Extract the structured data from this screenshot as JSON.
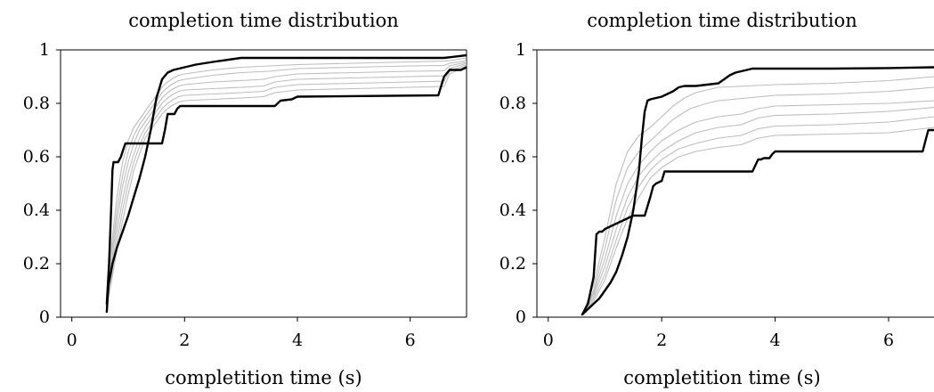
{
  "chart_data": [
    {
      "type": "line",
      "title": "completion time distribution",
      "xlabel": "completition time (s)",
      "ylabel": "",
      "xlim": [
        -0.2,
        7.0
      ],
      "ylim": [
        0,
        1
      ],
      "xticks": [
        0,
        2,
        4,
        6
      ],
      "xtick_labels": [
        "0",
        "2",
        "4",
        "6"
      ],
      "yticks": [
        0,
        0.2,
        0.4,
        0.6,
        0.8,
        1
      ],
      "ytick_labels": [
        "0",
        "0.2",
        "0.4",
        "0.6",
        "0.8",
        "1"
      ],
      "grid": false,
      "series": [
        {
          "style": "bold",
          "x": [
            0.62,
            0.65,
            0.72,
            0.8,
            0.9,
            1.0,
            1.1,
            1.2,
            1.3,
            1.4,
            1.5,
            1.6,
            1.7,
            1.8,
            2.0,
            2.2,
            2.5,
            3.0,
            4.0,
            5.0,
            6.0,
            6.6,
            7.0
          ],
          "y": [
            0.02,
            0.12,
            0.2,
            0.26,
            0.32,
            0.38,
            0.45,
            0.52,
            0.6,
            0.7,
            0.82,
            0.89,
            0.915,
            0.925,
            0.935,
            0.945,
            0.955,
            0.97,
            0.97,
            0.97,
            0.97,
            0.97,
            0.98
          ]
        },
        {
          "style": "bold",
          "x": [
            0.62,
            0.66,
            0.7,
            0.72,
            0.74,
            0.82,
            0.87,
            0.9,
            0.95,
            1.0,
            1.05,
            1.6,
            1.65,
            1.7,
            1.75,
            1.82,
            1.87,
            1.92,
            1.95,
            3.6,
            3.7,
            3.9,
            4.0,
            6.5,
            6.6,
            6.7,
            6.9,
            7.0
          ],
          "y": [
            0.05,
            0.2,
            0.42,
            0.55,
            0.58,
            0.58,
            0.6,
            0.62,
            0.65,
            0.65,
            0.65,
            0.65,
            0.7,
            0.76,
            0.76,
            0.76,
            0.78,
            0.79,
            0.79,
            0.79,
            0.81,
            0.815,
            0.825,
            0.83,
            0.9,
            0.925,
            0.925,
            0.935
          ]
        },
        {
          "style": "gray",
          "x": [
            0.62,
            0.7,
            0.8,
            0.9,
            1.0,
            1.1,
            1.2,
            1.3,
            1.4,
            1.5,
            1.6,
            1.7,
            1.8,
            1.9,
            2.0,
            2.5,
            3.0,
            4.0,
            5.0,
            6.0,
            6.6,
            6.7,
            7.0
          ],
          "y": [
            0.04,
            0.26,
            0.45,
            0.58,
            0.66,
            0.71,
            0.74,
            0.77,
            0.8,
            0.83,
            0.86,
            0.88,
            0.895,
            0.905,
            0.91,
            0.925,
            0.935,
            0.945,
            0.95,
            0.955,
            0.958,
            0.96,
            0.97
          ]
        },
        {
          "style": "gray",
          "x": [
            0.62,
            0.7,
            0.8,
            0.9,
            1.0,
            1.1,
            1.2,
            1.3,
            1.4,
            1.5,
            1.6,
            1.7,
            1.8,
            1.9,
            2.0,
            2.5,
            3.0,
            3.5,
            4.0,
            5.0,
            6.0,
            6.6,
            6.7,
            7.0
          ],
          "y": [
            0.04,
            0.23,
            0.4,
            0.53,
            0.62,
            0.68,
            0.72,
            0.75,
            0.78,
            0.81,
            0.84,
            0.86,
            0.875,
            0.885,
            0.89,
            0.905,
            0.915,
            0.92,
            0.93,
            0.935,
            0.94,
            0.942,
            0.95,
            0.96
          ]
        },
        {
          "style": "gray",
          "x": [
            0.62,
            0.7,
            0.8,
            0.9,
            1.0,
            1.1,
            1.2,
            1.3,
            1.4,
            1.5,
            1.6,
            1.7,
            1.8,
            1.9,
            2.0,
            2.5,
            3.0,
            3.4,
            3.6,
            4.0,
            5.0,
            6.0,
            6.6,
            6.7,
            7.0
          ],
          "y": [
            0.04,
            0.2,
            0.36,
            0.49,
            0.58,
            0.65,
            0.7,
            0.73,
            0.76,
            0.79,
            0.82,
            0.84,
            0.855,
            0.865,
            0.87,
            0.88,
            0.885,
            0.89,
            0.9,
            0.91,
            0.915,
            0.92,
            0.922,
            0.94,
            0.955
          ]
        },
        {
          "style": "gray",
          "x": [
            0.62,
            0.7,
            0.8,
            0.9,
            1.0,
            1.1,
            1.2,
            1.3,
            1.4,
            1.5,
            1.6,
            1.7,
            1.8,
            1.9,
            2.0,
            2.5,
            3.0,
            3.4,
            3.6,
            4.0,
            5.0,
            6.0,
            6.6,
            6.7,
            7.0
          ],
          "y": [
            0.04,
            0.17,
            0.32,
            0.44,
            0.54,
            0.61,
            0.67,
            0.71,
            0.74,
            0.77,
            0.8,
            0.82,
            0.835,
            0.845,
            0.85,
            0.855,
            0.86,
            0.865,
            0.88,
            0.89,
            0.895,
            0.9,
            0.903,
            0.93,
            0.95
          ]
        },
        {
          "style": "gray",
          "x": [
            0.62,
            0.7,
            0.8,
            0.9,
            1.0,
            1.1,
            1.2,
            1.3,
            1.4,
            1.5,
            1.6,
            1.7,
            1.8,
            1.9,
            2.0,
            2.5,
            3.0,
            3.4,
            3.6,
            4.0,
            5.0,
            6.0,
            6.6,
            6.7,
            7.0
          ],
          "y": [
            0.04,
            0.15,
            0.28,
            0.4,
            0.5,
            0.58,
            0.64,
            0.69,
            0.72,
            0.75,
            0.78,
            0.8,
            0.815,
            0.825,
            0.83,
            0.835,
            0.84,
            0.845,
            0.86,
            0.87,
            0.875,
            0.88,
            0.883,
            0.92,
            0.945
          ]
        },
        {
          "style": "gray",
          "x": [
            0.62,
            0.7,
            0.8,
            0.9,
            1.0,
            1.1,
            1.2,
            1.3,
            1.4,
            1.5,
            1.6,
            1.7,
            1.8,
            1.9,
            2.0,
            2.5,
            3.0,
            3.4,
            3.6,
            4.0,
            5.0,
            6.0,
            6.6,
            6.7,
            7.0
          ],
          "y": [
            0.04,
            0.13,
            0.25,
            0.36,
            0.46,
            0.55,
            0.61,
            0.67,
            0.7,
            0.73,
            0.76,
            0.78,
            0.795,
            0.805,
            0.81,
            0.815,
            0.82,
            0.825,
            0.84,
            0.85,
            0.855,
            0.86,
            0.863,
            0.91,
            0.94
          ]
        }
      ]
    },
    {
      "type": "line",
      "title": "completion time distribution",
      "xlabel": "completition time (s)",
      "ylabel": "",
      "xlim": [
        -0.2,
        6.8
      ],
      "ylim": [
        0,
        1
      ],
      "xticks": [
        0,
        2,
        4,
        6
      ],
      "xtick_labels": [
        "0",
        "2",
        "4",
        "6"
      ],
      "yticks": [
        0,
        0.2,
        0.4,
        0.6,
        0.8,
        1
      ],
      "ytick_labels": [
        "0",
        "0.2",
        "0.4",
        "0.6",
        "0.8",
        "1"
      ],
      "grid": false,
      "series": [
        {
          "style": "bold",
          "x": [
            0.6,
            0.7,
            0.8,
            0.9,
            1.0,
            1.1,
            1.2,
            1.3,
            1.4,
            1.5,
            1.6,
            1.65,
            1.7,
            1.75,
            1.8,
            1.9,
            2.0,
            2.1,
            2.2,
            2.3,
            2.4,
            2.6,
            2.8,
            3.0,
            3.1,
            3.2,
            3.3,
            3.4,
            3.6,
            4.0,
            5.0,
            6.0,
            6.8
          ],
          "y": [
            0.01,
            0.03,
            0.05,
            0.07,
            0.1,
            0.13,
            0.17,
            0.23,
            0.3,
            0.4,
            0.55,
            0.67,
            0.77,
            0.81,
            0.815,
            0.82,
            0.825,
            0.835,
            0.845,
            0.86,
            0.865,
            0.865,
            0.87,
            0.875,
            0.89,
            0.905,
            0.915,
            0.92,
            0.93,
            0.93,
            0.93,
            0.932,
            0.935
          ]
        },
        {
          "style": "bold",
          "x": [
            0.6,
            0.7,
            0.8,
            0.85,
            0.9,
            0.95,
            1.0,
            1.5,
            1.65,
            1.7,
            1.8,
            1.85,
            1.9,
            2.0,
            2.05,
            3.6,
            3.7,
            3.75,
            3.8,
            3.9,
            3.95,
            4.0,
            6.6,
            6.65,
            6.7,
            6.8
          ],
          "y": [
            0.01,
            0.05,
            0.15,
            0.31,
            0.32,
            0.32,
            0.33,
            0.38,
            0.38,
            0.38,
            0.45,
            0.49,
            0.5,
            0.51,
            0.545,
            0.545,
            0.59,
            0.59,
            0.595,
            0.595,
            0.61,
            0.62,
            0.62,
            0.66,
            0.7,
            0.7
          ]
        },
        {
          "style": "gray",
          "x": [
            0.6,
            0.8,
            1.0,
            1.2,
            1.4,
            1.6,
            1.8,
            2.0,
            2.2,
            2.4,
            2.6,
            2.8,
            3.0,
            3.5,
            4.0,
            5.0,
            6.0,
            6.8
          ],
          "y": [
            0.01,
            0.12,
            0.3,
            0.5,
            0.62,
            0.68,
            0.71,
            0.75,
            0.79,
            0.82,
            0.84,
            0.85,
            0.86,
            0.865,
            0.87,
            0.875,
            0.885,
            0.9
          ]
        },
        {
          "style": "gray",
          "x": [
            0.6,
            0.8,
            1.0,
            1.2,
            1.4,
            1.6,
            1.8,
            2.0,
            2.2,
            2.5,
            2.8,
            3.0,
            3.5,
            4.0,
            5.0,
            6.0,
            6.8
          ],
          "y": [
            0.01,
            0.1,
            0.26,
            0.44,
            0.56,
            0.62,
            0.66,
            0.7,
            0.74,
            0.78,
            0.8,
            0.81,
            0.82,
            0.83,
            0.835,
            0.845,
            0.86
          ]
        },
        {
          "style": "gray",
          "x": [
            0.6,
            0.8,
            1.0,
            1.2,
            1.4,
            1.6,
            1.8,
            2.0,
            2.3,
            2.6,
            3.0,
            3.4,
            3.7,
            4.0,
            5.0,
            6.0,
            6.8
          ],
          "y": [
            0.01,
            0.09,
            0.22,
            0.38,
            0.5,
            0.57,
            0.62,
            0.66,
            0.7,
            0.73,
            0.75,
            0.76,
            0.78,
            0.79,
            0.795,
            0.8,
            0.81
          ]
        },
        {
          "style": "gray",
          "x": [
            0.6,
            0.8,
            1.0,
            1.2,
            1.4,
            1.6,
            1.8,
            2.0,
            2.3,
            2.6,
            3.0,
            3.4,
            3.7,
            4.0,
            5.0,
            6.0,
            6.8
          ],
          "y": [
            0.01,
            0.08,
            0.19,
            0.33,
            0.45,
            0.53,
            0.58,
            0.62,
            0.66,
            0.69,
            0.71,
            0.72,
            0.745,
            0.755,
            0.76,
            0.77,
            0.785
          ]
        },
        {
          "style": "gray",
          "x": [
            0.6,
            0.8,
            1.0,
            1.2,
            1.4,
            1.6,
            1.8,
            2.0,
            2.3,
            2.6,
            3.0,
            3.4,
            3.7,
            4.0,
            5.0,
            6.0,
            6.8
          ],
          "y": [
            0.01,
            0.07,
            0.16,
            0.29,
            0.41,
            0.49,
            0.55,
            0.59,
            0.63,
            0.65,
            0.67,
            0.68,
            0.705,
            0.715,
            0.72,
            0.73,
            0.75
          ]
        },
        {
          "style": "gray",
          "x": [
            0.6,
            0.8,
            1.0,
            1.2,
            1.4,
            1.6,
            1.8,
            2.0,
            2.3,
            2.6,
            3.0,
            3.4,
            3.7,
            4.0,
            5.0,
            6.0,
            6.8
          ],
          "y": [
            0.01,
            0.06,
            0.14,
            0.26,
            0.37,
            0.45,
            0.52,
            0.56,
            0.6,
            0.62,
            0.635,
            0.645,
            0.67,
            0.68,
            0.685,
            0.69,
            0.71
          ]
        }
      ]
    }
  ]
}
